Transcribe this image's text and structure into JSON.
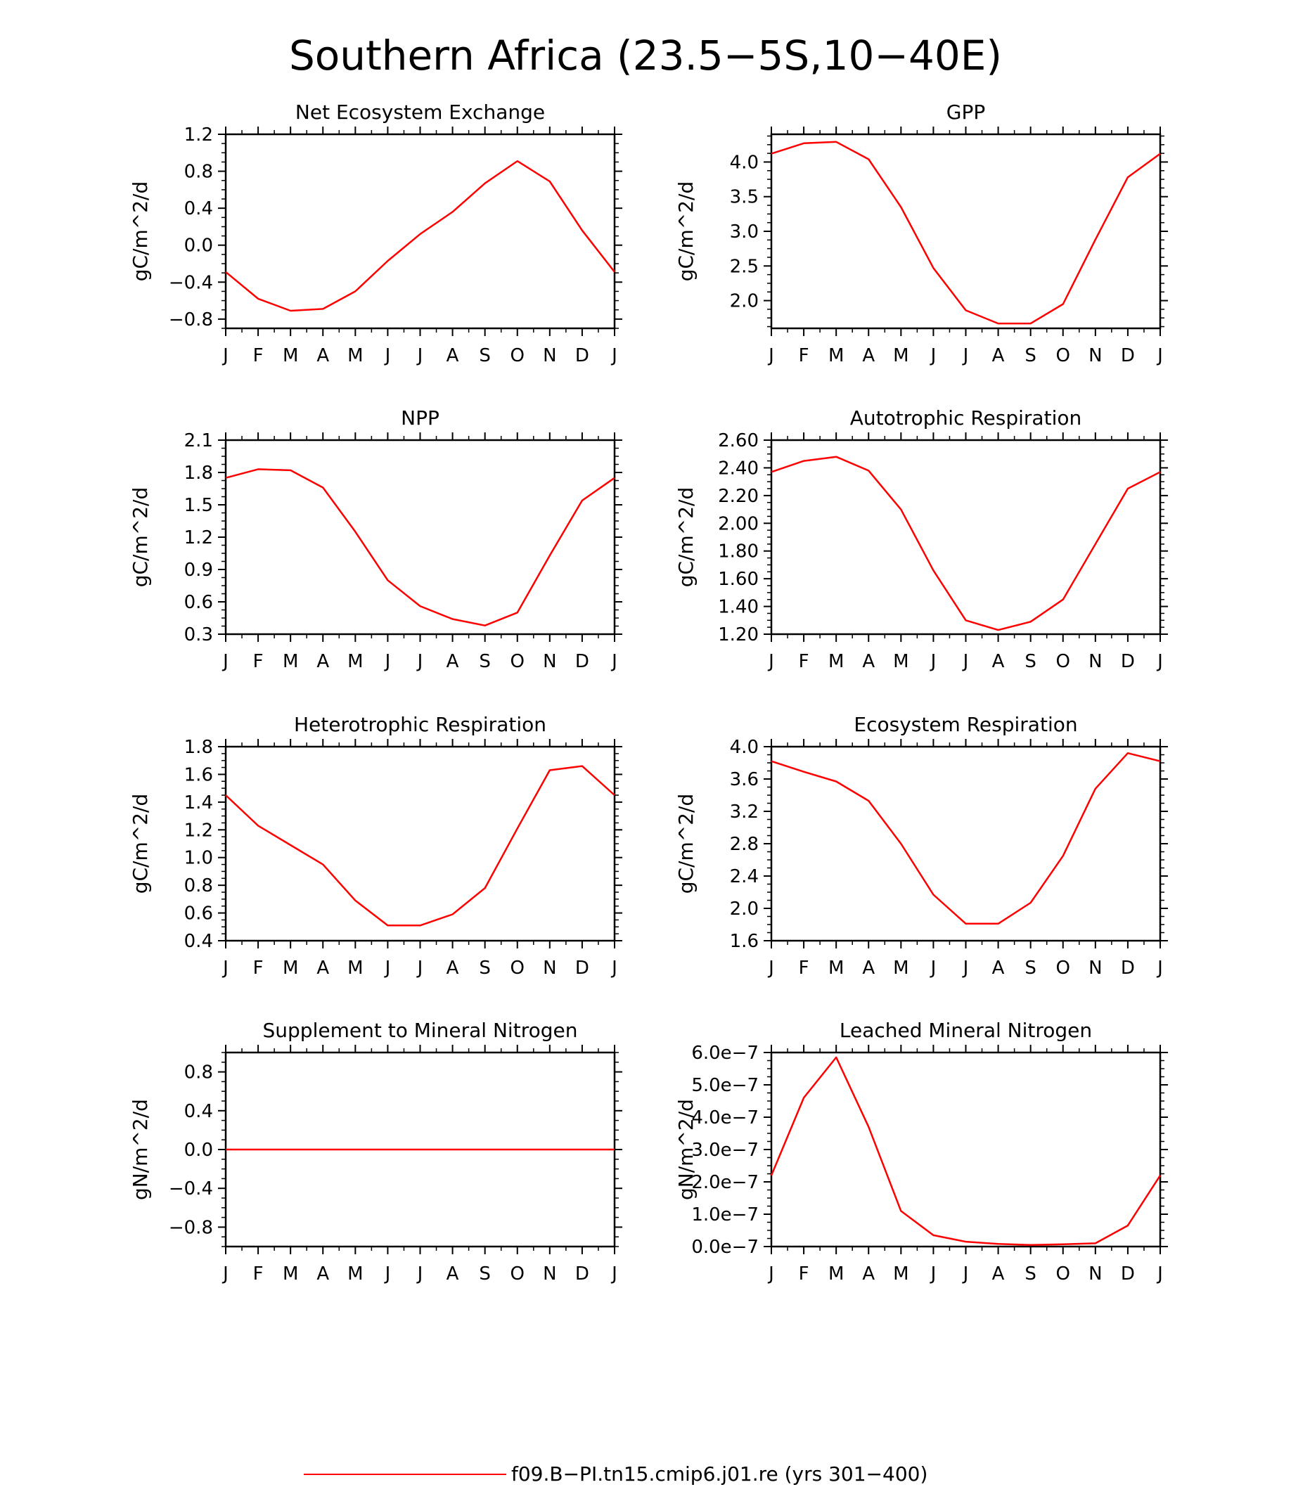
{
  "figure": {
    "title": "Southern Africa (23.5−5S,10−40E)",
    "line_color": "#ff0000",
    "legend": {
      "label": "f09.B−PI.tn15.cmip6.j01.re (yrs 301−400)",
      "placement": "bottom-center"
    }
  },
  "chart_data": [
    {
      "type": "line",
      "title": "Net Ecosystem Exchange",
      "ylabel": "gC/m^2/d",
      "x": [
        "J",
        "F",
        "M",
        "A",
        "M",
        "J",
        "J",
        "A",
        "S",
        "O",
        "N",
        "D",
        "J"
      ],
      "ylim": [
        -0.9,
        1.2
      ],
      "yticks": [
        -0.8,
        -0.4,
        0.0,
        0.4,
        0.8,
        1.2
      ],
      "ytick_labels": [
        "−0.8",
        "−0.4",
        "0.0",
        "0.4",
        "0.8",
        "1.2"
      ],
      "series": [
        {
          "values": [
            -0.29,
            -0.58,
            -0.71,
            -0.69,
            -0.5,
            -0.17,
            0.12,
            0.36,
            0.67,
            0.91,
            0.69,
            0.16,
            -0.29
          ]
        }
      ]
    },
    {
      "type": "line",
      "title": "GPP",
      "ylabel": "gC/m^2/d",
      "x": [
        "J",
        "F",
        "M",
        "A",
        "M",
        "J",
        "J",
        "A",
        "S",
        "O",
        "N",
        "D",
        "J"
      ],
      "ylim": [
        1.6,
        4.4
      ],
      "yticks": [
        2.0,
        2.5,
        3.0,
        3.5,
        4.0
      ],
      "ytick_labels": [
        "2.0",
        "2.5",
        "3.0",
        "3.5",
        "4.0"
      ],
      "series": [
        {
          "values": [
            4.12,
            4.27,
            4.29,
            4.04,
            3.35,
            2.47,
            1.86,
            1.67,
            1.67,
            1.95,
            2.88,
            3.78,
            4.12
          ]
        }
      ]
    },
    {
      "type": "line",
      "title": "NPP",
      "ylabel": "gC/m^2/d",
      "x": [
        "J",
        "F",
        "M",
        "A",
        "M",
        "J",
        "J",
        "A",
        "S",
        "O",
        "N",
        "D",
        "J"
      ],
      "ylim": [
        0.3,
        2.1
      ],
      "yticks": [
        0.3,
        0.6,
        0.9,
        1.2,
        1.5,
        1.8,
        2.1
      ],
      "ytick_labels": [
        "0.3",
        "0.6",
        "0.9",
        "1.2",
        "1.5",
        "1.8",
        "2.1"
      ],
      "series": [
        {
          "values": [
            1.75,
            1.83,
            1.82,
            1.66,
            1.25,
            0.8,
            0.56,
            0.44,
            0.38,
            0.5,
            1.03,
            1.54,
            1.75
          ]
        }
      ]
    },
    {
      "type": "line",
      "title": "Autotrophic Respiration",
      "ylabel": "gC/m^2/d",
      "x": [
        "J",
        "F",
        "M",
        "A",
        "M",
        "J",
        "J",
        "A",
        "S",
        "O",
        "N",
        "D",
        "J"
      ],
      "ylim": [
        1.2,
        2.6
      ],
      "yticks": [
        1.2,
        1.4,
        1.6,
        1.8,
        2.0,
        2.2,
        2.4,
        2.6
      ],
      "ytick_labels": [
        "1.20",
        "1.40",
        "1.60",
        "1.80",
        "2.00",
        "2.20",
        "2.40",
        "2.60"
      ],
      "series": [
        {
          "values": [
            2.37,
            2.45,
            2.48,
            2.38,
            2.1,
            1.66,
            1.3,
            1.23,
            1.29,
            1.45,
            1.85,
            2.25,
            2.37
          ]
        }
      ]
    },
    {
      "type": "line",
      "title": "Heterotrophic Respiration",
      "ylabel": "gC/m^2/d",
      "x": [
        "J",
        "F",
        "M",
        "A",
        "M",
        "J",
        "J",
        "A",
        "S",
        "O",
        "N",
        "D",
        "J"
      ],
      "ylim": [
        0.4,
        1.8
      ],
      "yticks": [
        0.4,
        0.6,
        0.8,
        1.0,
        1.2,
        1.4,
        1.6,
        1.8
      ],
      "ytick_labels": [
        "0.4",
        "0.6",
        "0.8",
        "1.0",
        "1.2",
        "1.4",
        "1.6",
        "1.8"
      ],
      "series": [
        {
          "values": [
            1.45,
            1.23,
            1.09,
            0.95,
            0.69,
            0.51,
            0.51,
            0.59,
            0.78,
            1.21,
            1.63,
            1.66,
            1.45
          ]
        }
      ]
    },
    {
      "type": "line",
      "title": "Ecosystem Respiration",
      "ylabel": "gC/m^2/d",
      "x": [
        "J",
        "F",
        "M",
        "A",
        "M",
        "J",
        "J",
        "A",
        "S",
        "O",
        "N",
        "D",
        "J"
      ],
      "ylim": [
        1.6,
        4.0
      ],
      "yticks": [
        1.6,
        2.0,
        2.4,
        2.8,
        3.2,
        3.6,
        4.0
      ],
      "ytick_labels": [
        "1.6",
        "2.0",
        "2.4",
        "2.8",
        "3.2",
        "3.6",
        "4.0"
      ],
      "series": [
        {
          "values": [
            3.82,
            3.69,
            3.57,
            3.33,
            2.8,
            2.17,
            1.81,
            1.81,
            2.07,
            2.65,
            3.48,
            3.92,
            3.82
          ]
        }
      ]
    },
    {
      "type": "line",
      "title": "Supplement to Mineral Nitrogen",
      "ylabel": "gN/m^2/d",
      "x": [
        "J",
        "F",
        "M",
        "A",
        "M",
        "J",
        "J",
        "A",
        "S",
        "O",
        "N",
        "D",
        "J"
      ],
      "ylim": [
        -1.0,
        1.0
      ],
      "yticks": [
        -0.8,
        -0.4,
        0.0,
        0.4,
        0.8
      ],
      "ytick_labels": [
        "−0.8",
        "−0.4",
        "0.0",
        "0.4",
        "0.8"
      ],
      "series": [
        {
          "values": [
            0,
            0,
            0,
            0,
            0,
            0,
            0,
            0,
            0,
            0,
            0,
            0,
            0
          ]
        }
      ]
    },
    {
      "type": "line",
      "title": "Leached Mineral Nitrogen",
      "ylabel": "gN/m^2/d",
      "x": [
        "J",
        "F",
        "M",
        "A",
        "M",
        "J",
        "J",
        "A",
        "S",
        "O",
        "N",
        "D",
        "J"
      ],
      "ylim": [
        0,
        6e-07
      ],
      "yticks": [
        0,
        1e-07,
        2e-07,
        3e-07,
        4e-07,
        5e-07,
        6e-07
      ],
      "ytick_labels": [
        "0.0e−7",
        "1.0e−7",
        "2.0e−7",
        "3.0e−7",
        "4.0e−7",
        "5.0e−7",
        "6.0e−7"
      ],
      "series": [
        {
          "values": [
            2.2e-07,
            4.6e-07,
            5.85e-07,
            3.7e-07,
            1.1e-07,
            3.5e-08,
            1.5e-08,
            8e-09,
            5e-09,
            7e-09,
            1e-08,
            6.5e-08,
            2.2e-07
          ]
        }
      ]
    }
  ]
}
